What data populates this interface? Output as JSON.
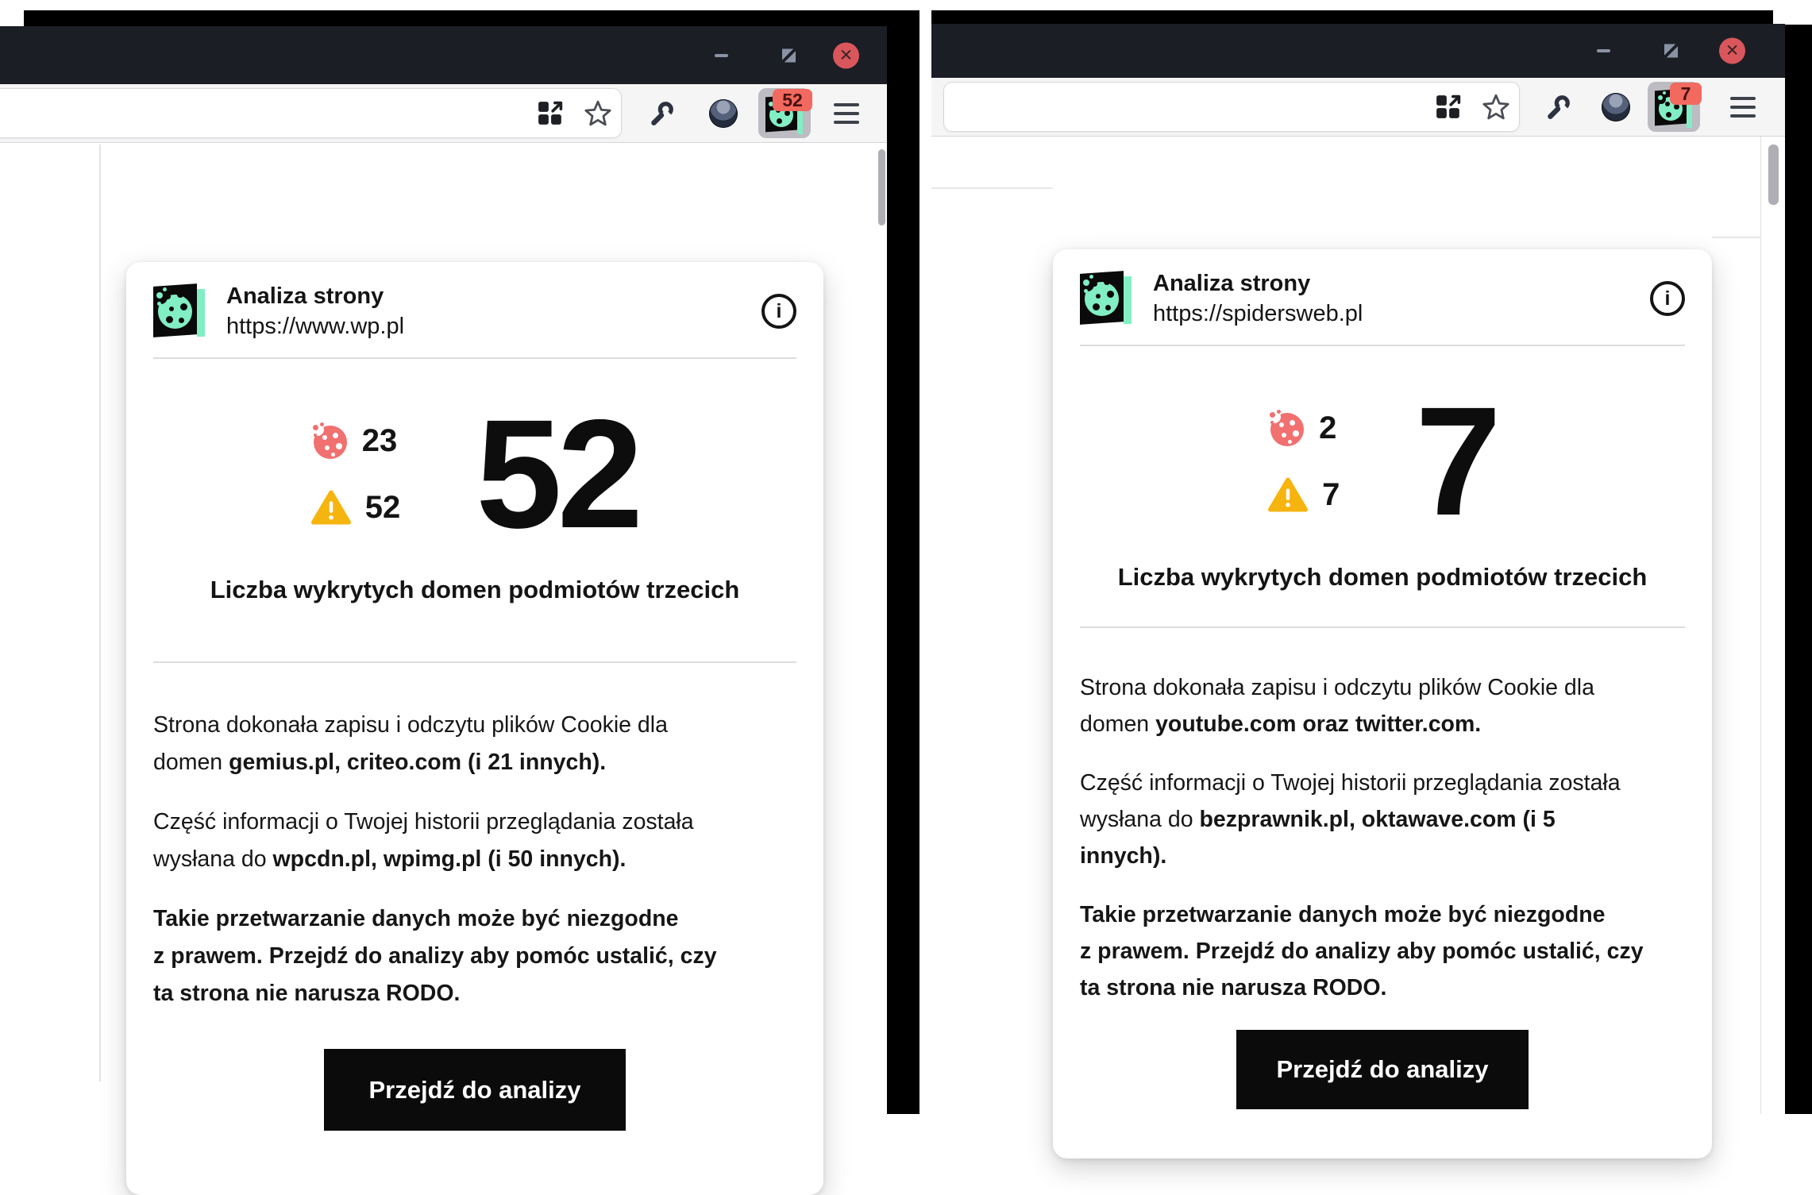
{
  "colors": {
    "accent_mint": "#82eec4",
    "badge_red": "#f2695f",
    "cookie_red": "#f17070",
    "warning_amber": "#f6b40f",
    "titlebar": "#1c1e26",
    "close_red": "#d9575c",
    "cta_black": "#0b0b0b"
  },
  "icons": {
    "window": [
      "minimize-icon",
      "restore-icon",
      "close-icon"
    ],
    "urlbar": [
      "page-actions-grid-icon",
      "bookmark-star-icon"
    ],
    "toolbar": [
      "wrench-icon",
      "profile-avatar",
      "cookie-extension-icon",
      "menu-hamburger-icon"
    ],
    "popup": [
      "cookie-logo-icon",
      "info-icon",
      "cookie-count-icon",
      "warning-triangle-icon"
    ]
  },
  "windows": [
    {
      "toolbar": {
        "badge": "52"
      },
      "popup": {
        "title": "Analiza strony",
        "url": "https://www.wp.pl",
        "cookie_count": "23",
        "warning_count": "52",
        "big_number": "52",
        "subtitle": "Liczba wykrytych domen podmiotów trzecich",
        "paragraphs": [
          [
            {
              "t": "Strona dokonała zapisu i odczytu plików Cookie dla\ndomen ",
              "b": false
            },
            {
              "t": "gemius.pl, criteo.com (i 21 innych).",
              "b": true
            }
          ],
          [
            {
              "t": "Część informacji o Twojej historii przeglądania została\nwysłana do ",
              "b": false
            },
            {
              "t": "wpcdn.pl, wpimg.pl (i 50 innych).",
              "b": true
            }
          ],
          [
            {
              "t": "Takie przetwarzanie danych może być niezgodne\nz prawem. Przejdź do analizy aby pomóc ustalić, czy\nta strona nie narusza RODO.",
              "b": true
            }
          ]
        ],
        "button_label": "Przejdź do analizy"
      }
    },
    {
      "toolbar": {
        "badge": "7"
      },
      "popup": {
        "title": "Analiza strony",
        "url": "https://spidersweb.pl",
        "cookie_count": "2",
        "warning_count": "7",
        "big_number": "7",
        "subtitle": "Liczba wykrytych domen podmiotów trzecich",
        "paragraphs": [
          [
            {
              "t": "Strona dokonała zapisu i odczytu plików Cookie dla\ndomen ",
              "b": false
            },
            {
              "t": "youtube.com oraz twitter.com.",
              "b": true
            }
          ],
          [
            {
              "t": "Część informacji o Twojej historii przeglądania została\nwysłana do ",
              "b": false
            },
            {
              "t": "bezprawnik.pl, oktawave.com (i 5\ninnych).",
              "b": true
            }
          ],
          [
            {
              "t": "Takie przetwarzanie danych może być niezgodne\nz prawem. Przejdź do analizy aby pomóc ustalić, czy\nta strona nie narusza RODO.",
              "b": true
            }
          ]
        ],
        "button_label": "Przejdź do analizy"
      }
    }
  ]
}
